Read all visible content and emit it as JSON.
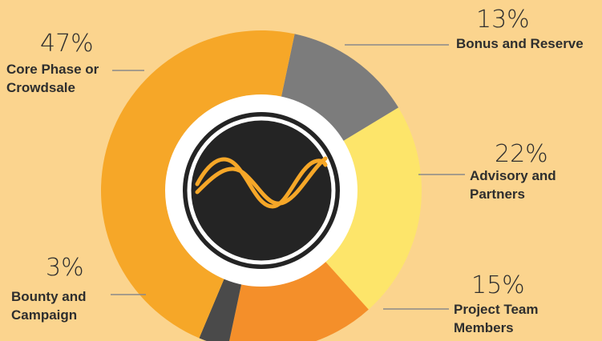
{
  "chart_data": {
    "type": "pie",
    "variant": "donut",
    "slices": [
      {
        "label_lines": [
          "Bonus and Reserve"
        ],
        "percent_text": "13%",
        "value": 13,
        "color": "#7c7c7c"
      },
      {
        "label_lines": [
          "Advisory and",
          "Partners"
        ],
        "percent_text": "22%",
        "value": 22,
        "color": "#fde56a"
      },
      {
        "label_lines": [
          "Project Team",
          "Members"
        ],
        "percent_text": "15%",
        "value": 15,
        "color": "#f48f2a"
      },
      {
        "label_lines": [
          "Bounty and",
          "Campaign"
        ],
        "percent_text": "3%",
        "value": 3,
        "color": "#4a4a4a"
      },
      {
        "label_lines": [
          "Core Phase or",
          "Crowdsale"
        ],
        "percent_text": "47%",
        "value": 47,
        "color": "#f6a728"
      }
    ],
    "center_icon": "sine-wave-icon",
    "colors": {
      "background": "#fbd48e",
      "center_dark": "#242424",
      "center_ring": "#ffffff",
      "wave": "#f6a728"
    }
  }
}
